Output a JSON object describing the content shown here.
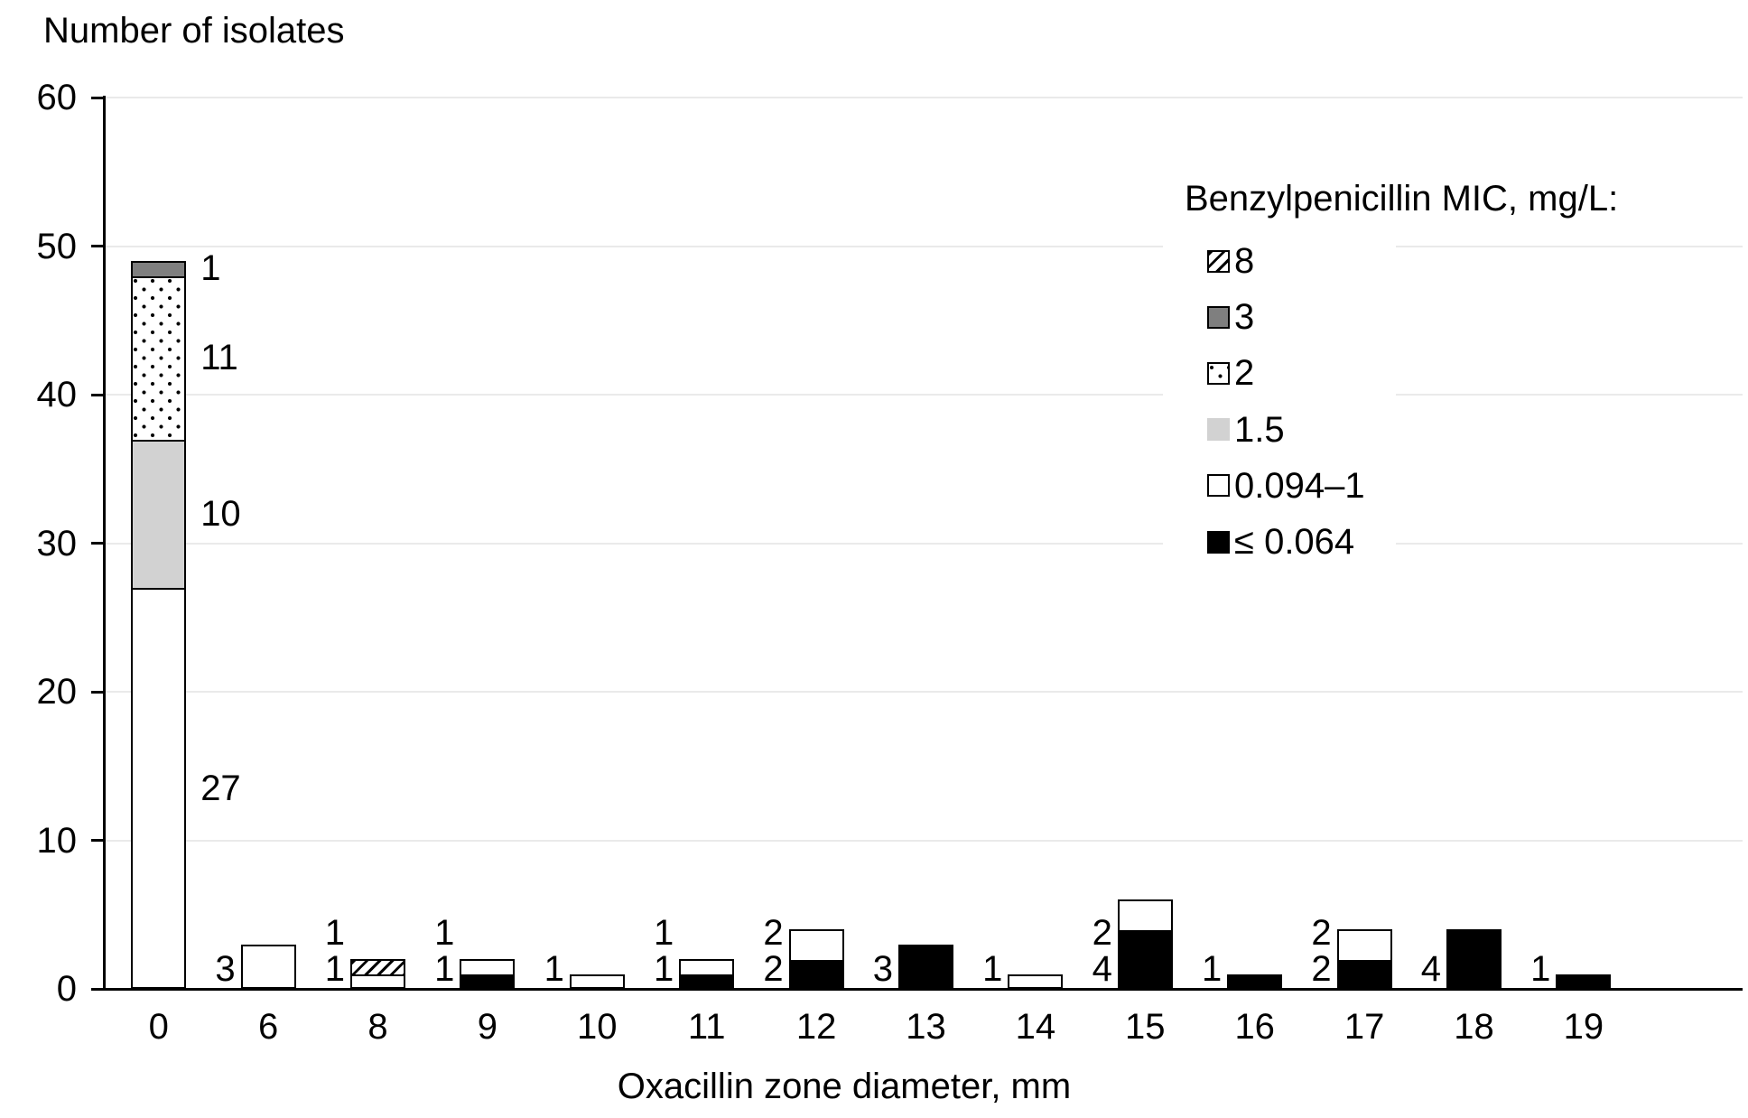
{
  "chart_data": {
    "type": "bar",
    "stacked": true,
    "y_axis": {
      "label": "Number of isolates",
      "min": 0,
      "max": 60,
      "tick_step": 10,
      "ticks": [
        "0",
        "10",
        "20",
        "30",
        "40",
        "50",
        "60"
      ],
      "grid": true
    },
    "x_axis": {
      "label": "Oxacillin zone diameter, mm",
      "categories": [
        "0",
        "6",
        "8",
        "9",
        "10",
        "11",
        "12",
        "13",
        "14",
        "15",
        "16",
        "17",
        "18",
        "19"
      ]
    },
    "legend": {
      "title": "Benzylpenicillin MIC, mg/L:",
      "position": "right-inside",
      "items": [
        {
          "label": "8",
          "style": "hatch"
        },
        {
          "label": "3",
          "style": "darkgray"
        },
        {
          "label": "2",
          "style": "dotted"
        },
        {
          "label": "1.5",
          "style": "lightgray"
        },
        {
          "label": "0.094–1",
          "style": "white"
        },
        {
          "label": "≤ 0.064",
          "style": "black"
        }
      ]
    },
    "mic_styles": {
      "8": "hatch",
      "3": "darkgray",
      "2": "dotted",
      "1.5": "lightgray",
      "0.094–1": "white",
      "≤ 0.064": "black"
    },
    "stacks": [
      {
        "category": "0",
        "label_side": "right",
        "segments": [
          {
            "mic": "0.094–1",
            "value": 27
          },
          {
            "mic": "1.5",
            "value": 10
          },
          {
            "mic": "2",
            "value": 11
          },
          {
            "mic": "3",
            "value": 1
          }
        ]
      },
      {
        "category": "6",
        "label_side": "left",
        "segments": [
          {
            "mic": "0.094–1",
            "value": 3
          }
        ]
      },
      {
        "category": "8",
        "label_side": "left",
        "segments": [
          {
            "mic": "0.094–1",
            "value": 1
          },
          {
            "mic": "8",
            "value": 1
          }
        ]
      },
      {
        "category": "9",
        "label_side": "left",
        "segments": [
          {
            "mic": "≤ 0.064",
            "value": 1
          },
          {
            "mic": "0.094–1",
            "value": 1
          }
        ]
      },
      {
        "category": "10",
        "label_side": "left",
        "segments": [
          {
            "mic": "0.094–1",
            "value": 1
          }
        ]
      },
      {
        "category": "11",
        "label_side": "left",
        "segments": [
          {
            "mic": "≤ 0.064",
            "value": 1
          },
          {
            "mic": "0.094–1",
            "value": 1
          }
        ]
      },
      {
        "category": "12",
        "label_side": "left",
        "segments": [
          {
            "mic": "≤ 0.064",
            "value": 2
          },
          {
            "mic": "0.094–1",
            "value": 2
          }
        ]
      },
      {
        "category": "13",
        "label_side": "left",
        "segments": [
          {
            "mic": "≤ 0.064",
            "value": 3
          }
        ]
      },
      {
        "category": "14",
        "label_side": "left",
        "segments": [
          {
            "mic": "0.094–1",
            "value": 1
          }
        ]
      },
      {
        "category": "15",
        "label_side": "left",
        "segments": [
          {
            "mic": "≤ 0.064",
            "value": 4
          },
          {
            "mic": "0.094–1",
            "value": 2
          }
        ]
      },
      {
        "category": "16",
        "label_side": "left",
        "segments": [
          {
            "mic": "≤ 0.064",
            "value": 1
          }
        ]
      },
      {
        "category": "17",
        "label_side": "left",
        "segments": [
          {
            "mic": "≤ 0.064",
            "value": 2
          },
          {
            "mic": "0.094–1",
            "value": 2
          }
        ]
      },
      {
        "category": "18",
        "label_side": "left",
        "segments": [
          {
            "mic": "≤ 0.064",
            "value": 4
          }
        ]
      },
      {
        "category": "19",
        "label_side": "left",
        "segments": [
          {
            "mic": "≤ 0.064",
            "value": 1
          }
        ]
      }
    ],
    "colors": {
      "darkgray": "#7f7f7f",
      "lightgray": "#d2d2d2",
      "black": "#000000",
      "white": "#ffffff",
      "gridline": "#eaeaea",
      "axis": "#000000",
      "text": "#000000"
    }
  }
}
